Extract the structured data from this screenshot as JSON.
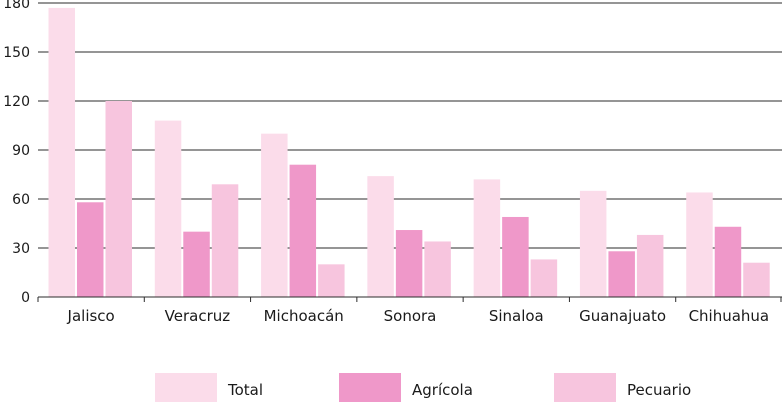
{
  "chart_data": {
    "type": "bar",
    "categories": [
      "Jalisco",
      "Veracruz",
      "Michoacán",
      "Sonora",
      "Sinaloa",
      "Guanajuato",
      "Chihuahua"
    ],
    "series": [
      {
        "name": "Total",
        "color": "#fbdcea",
        "values": [
          177,
          108,
          100,
          74,
          72,
          65,
          64
        ]
      },
      {
        "name": "Agrícola",
        "color": "#ef98c9",
        "values": [
          58,
          40,
          81,
          41,
          49,
          28,
          43
        ]
      },
      {
        "name": "Pecuario",
        "color": "#f7c5de",
        "values": [
          120,
          69,
          20,
          34,
          23,
          38,
          21
        ]
      }
    ],
    "y_ticks": [
      "0",
      "30",
      "60",
      "90",
      "120",
      "150",
      "180"
    ],
    "ylim": [
      0,
      180
    ],
    "grid": true,
    "legend_position": "bottom",
    "title": "",
    "xlabel": "",
    "ylabel": ""
  }
}
